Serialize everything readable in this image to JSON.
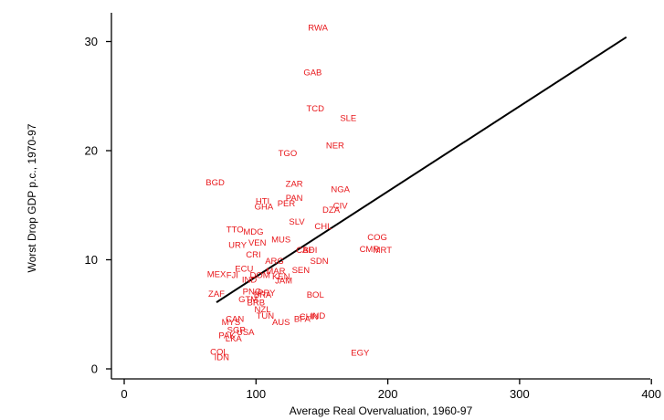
{
  "chart_data": {
    "type": "scatter",
    "title": "",
    "xlabel": "Average Real Overvaluation, 1960-97",
    "ylabel": "Worst Drop GDP p.c., 1970-97",
    "xlim": [
      -10,
      400
    ],
    "ylim": [
      -1,
      33
    ],
    "x_ticks": [
      0,
      100,
      200,
      300,
      400
    ],
    "y_ticks": [
      0,
      10,
      20,
      30
    ],
    "grid": false,
    "legend": "none",
    "point_color": "#e8161a",
    "line_color": "#000000",
    "points": [
      {
        "label": "RWA",
        "x": 147,
        "y": 31.3
      },
      {
        "label": "GAB",
        "x": 143,
        "y": 27.2
      },
      {
        "label": "TCD",
        "x": 145,
        "y": 23.9
      },
      {
        "label": "SLE",
        "x": 170,
        "y": 23.0
      },
      {
        "label": "NER",
        "x": 160,
        "y": 20.5
      },
      {
        "label": "TGO",
        "x": 124,
        "y": 19.8
      },
      {
        "label": "BGD",
        "x": 69,
        "y": 17.1
      },
      {
        "label": "ZAR",
        "x": 129,
        "y": 17.0
      },
      {
        "label": "NGA",
        "x": 164,
        "y": 16.5
      },
      {
        "label": "PAN",
        "x": 129,
        "y": 15.7
      },
      {
        "label": "HTI",
        "x": 105,
        "y": 15.4
      },
      {
        "label": "PER",
        "x": 123,
        "y": 15.2
      },
      {
        "label": "CIV",
        "x": 164,
        "y": 15.0
      },
      {
        "label": "GHA",
        "x": 106,
        "y": 14.9
      },
      {
        "label": "DZA",
        "x": 157,
        "y": 14.6
      },
      {
        "label": "SLV",
        "x": 131,
        "y": 13.5
      },
      {
        "label": "CHL",
        "x": 151,
        "y": 13.1
      },
      {
        "label": "TTO",
        "x": 84,
        "y": 12.8
      },
      {
        "label": "MDG",
        "x": 98,
        "y": 12.6
      },
      {
        "label": "COG",
        "x": 192,
        "y": 12.1
      },
      {
        "label": "MUS",
        "x": 119,
        "y": 11.9
      },
      {
        "label": "VEN",
        "x": 101,
        "y": 11.6
      },
      {
        "label": "URY",
        "x": 86,
        "y": 11.4
      },
      {
        "label": "CMR",
        "x": 186,
        "y": 11.0
      },
      {
        "label": "MRT",
        "x": 196,
        "y": 10.9
      },
      {
        "label": "CAF",
        "x": 137,
        "y": 10.9
      },
      {
        "label": "BDI",
        "x": 141,
        "y": 10.9
      },
      {
        "label": "CRI",
        "x": 98,
        "y": 10.5
      },
      {
        "label": "SDN",
        "x": 148,
        "y": 9.9
      },
      {
        "label": "ARG",
        "x": 114,
        "y": 9.9
      },
      {
        "label": "ECU",
        "x": 91,
        "y": 9.2
      },
      {
        "label": "MAR",
        "x": 115,
        "y": 9.0
      },
      {
        "label": "SEN",
        "x": 134,
        "y": 9.1
      },
      {
        "label": "MEX",
        "x": 70,
        "y": 8.7
      },
      {
        "label": "FJI",
        "x": 82,
        "y": 8.6
      },
      {
        "label": "DOM",
        "x": 103,
        "y": 8.6
      },
      {
        "label": "KEN",
        "x": 119,
        "y": 8.5
      },
      {
        "label": "IND",
        "x": 95,
        "y": 8.2
      },
      {
        "label": "JAM",
        "x": 121,
        "y": 8.1
      },
      {
        "label": "ZAF",
        "x": 70,
        "y": 6.9
      },
      {
        "label": "PNG",
        "x": 97,
        "y": 7.1
      },
      {
        "label": "PRY",
        "x": 108,
        "y": 7.0
      },
      {
        "label": "BRA",
        "x": 105,
        "y": 6.8
      },
      {
        "label": "BOL",
        "x": 145,
        "y": 6.8
      },
      {
        "label": "GTM",
        "x": 94,
        "y": 6.4
      },
      {
        "label": "BRB",
        "x": 100,
        "y": 6.1
      },
      {
        "label": "NZL",
        "x": 105,
        "y": 5.5
      },
      {
        "label": "TUN",
        "x": 107,
        "y": 4.9
      },
      {
        "label": "CHN",
        "x": 140,
        "y": 4.8
      },
      {
        "label": "IND",
        "x": 147,
        "y": 4.9
      },
      {
        "label": "BFA",
        "x": 135,
        "y": 4.6
      },
      {
        "label": "CAN",
        "x": 84,
        "y": 4.6
      },
      {
        "label": "AUS",
        "x": 119,
        "y": 4.3
      },
      {
        "label": "MYS",
        "x": 81,
        "y": 4.3
      },
      {
        "label": "SGP",
        "x": 85,
        "y": 3.6
      },
      {
        "label": "USA",
        "x": 92,
        "y": 3.4
      },
      {
        "label": "PAK",
        "x": 78,
        "y": 3.1
      },
      {
        "label": "LKA",
        "x": 83,
        "y": 2.8
      },
      {
        "label": "EGY",
        "x": 179,
        "y": 1.5
      },
      {
        "label": "COL",
        "x": 72,
        "y": 1.6
      },
      {
        "label": "IDN",
        "x": 74,
        "y": 1.1
      }
    ],
    "fit_line": {
      "x": [
        70,
        381
      ],
      "y": [
        6.1,
        30.4
      ]
    }
  }
}
